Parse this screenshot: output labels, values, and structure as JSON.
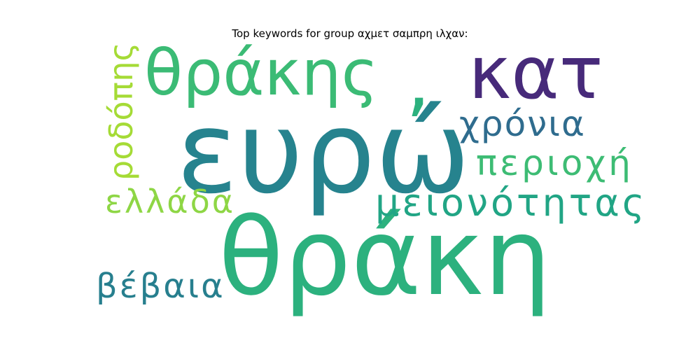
{
  "title": "Top keywords for group αχμετ σαμπρη ιλχαν:",
  "words": [
    {
      "key": "evro",
      "text": "ευρώ",
      "color": "#26838e"
    },
    {
      "key": "thraki",
      "text": "θράκη",
      "color": "#2cb17e"
    },
    {
      "key": "thrakis",
      "text": "θράκης",
      "color": "#3bbb75"
    },
    {
      "key": "kat",
      "text": "κατ",
      "color": "#472a7a"
    },
    {
      "key": "xronia",
      "text": "χρόνια",
      "color": "#2f6c8e"
    },
    {
      "key": "periochi",
      "text": "περιοχή",
      "color": "#3dbc74"
    },
    {
      "key": "meionotitas",
      "text": "μειονότητας",
      "color": "#21a585"
    },
    {
      "key": "ellada",
      "text": "ελλάδα",
      "color": "#8ed645"
    },
    {
      "key": "rodopis",
      "text": "ροδόπης",
      "color": "#a5db36"
    },
    {
      "key": "vevaia",
      "text": "βέβαια",
      "color": "#277f8e"
    },
    {
      "key": "comma",
      "text": ",",
      "color": "#2cb17e"
    }
  ]
}
